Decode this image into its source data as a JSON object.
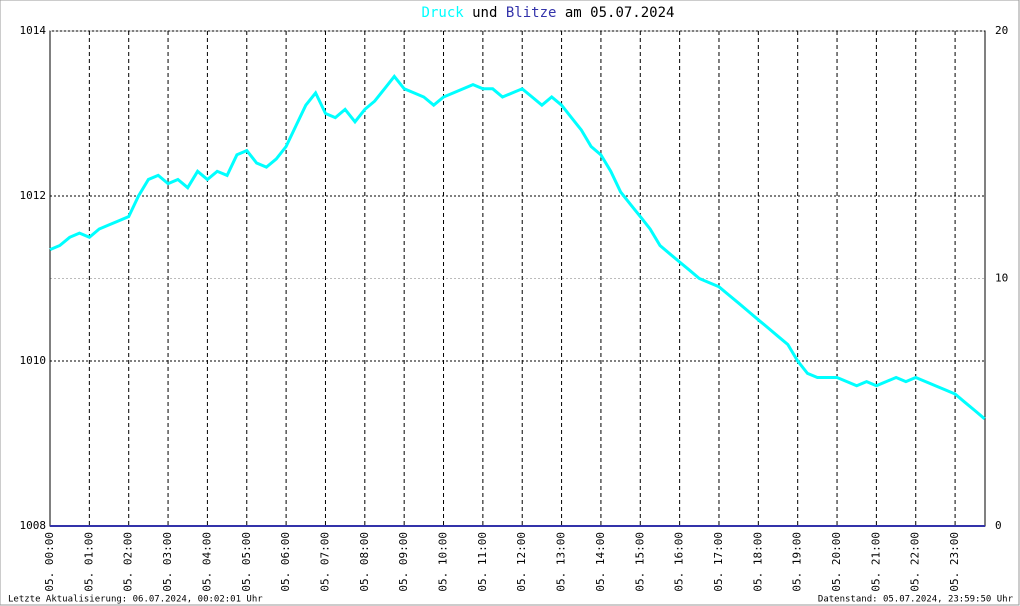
{
  "chart_data": {
    "type": "line",
    "title_connector": "und",
    "title_date": "am 05.07.2024",
    "footer_left": "Letzte Aktualisierung: 06.07.2024, 00:02:01 Uhr",
    "footer_right": "Datenstand: 05.07.2024, 23:59:50 Uhr",
    "xlim": [
      0,
      23.76
    ],
    "xticks": [
      {
        "value": 0,
        "label": "05. 00:00"
      },
      {
        "value": 1,
        "label": "05. 01:00"
      },
      {
        "value": 2,
        "label": "05. 02:00"
      },
      {
        "value": 3,
        "label": "05. 03:00"
      },
      {
        "value": 4,
        "label": "05. 04:00"
      },
      {
        "value": 5,
        "label": "05. 05:00"
      },
      {
        "value": 6,
        "label": "05. 06:00"
      },
      {
        "value": 7,
        "label": "05. 07:00"
      },
      {
        "value": 8,
        "label": "05. 08:00"
      },
      {
        "value": 9,
        "label": "05. 09:00"
      },
      {
        "value": 10,
        "label": "05. 10:00"
      },
      {
        "value": 11,
        "label": "05. 11:00"
      },
      {
        "value": 12,
        "label": "05. 12:00"
      },
      {
        "value": 13,
        "label": "05. 13:00"
      },
      {
        "value": 14,
        "label": "05. 14:00"
      },
      {
        "value": 15,
        "label": "05. 15:00"
      },
      {
        "value": 16,
        "label": "05. 16:00"
      },
      {
        "value": 17,
        "label": "05. 17:00"
      },
      {
        "value": 18,
        "label": "05. 18:00"
      },
      {
        "value": 19,
        "label": "05. 19:00"
      },
      {
        "value": 20,
        "label": "05. 20:00"
      },
      {
        "value": 21,
        "label": "05. 21:00"
      },
      {
        "value": 22,
        "label": "05. 22:00"
      },
      {
        "value": 23,
        "label": "05. 23:00"
      }
    ],
    "ylim": [
      1008,
      1014
    ],
    "yticks": [
      1008,
      1010,
      1012,
      1014
    ],
    "y2lim": [
      0,
      20
    ],
    "y2ticks": [
      0,
      10,
      20
    ],
    "grid": true,
    "series": [
      {
        "name": "Druck",
        "color": "#00ffff",
        "x": [
          0,
          0.25,
          0.5,
          0.75,
          1,
          1.25,
          1.5,
          1.75,
          2,
          2.25,
          2.5,
          2.75,
          3,
          3.25,
          3.5,
          3.75,
          4,
          4.25,
          4.5,
          4.75,
          5,
          5.25,
          5.5,
          5.75,
          6,
          6.25,
          6.5,
          6.75,
          7,
          7.25,
          7.5,
          7.75,
          8,
          8.25,
          8.5,
          8.75,
          9,
          9.25,
          9.5,
          9.75,
          10,
          10.25,
          10.5,
          10.75,
          11,
          11.25,
          11.5,
          11.75,
          12,
          12.25,
          12.5,
          12.75,
          13,
          13.25,
          13.5,
          13.75,
          14,
          14.25,
          14.5,
          14.75,
          15,
          15.25,
          15.5,
          15.75,
          16,
          16.25,
          16.5,
          16.75,
          17,
          17.25,
          17.5,
          17.75,
          18,
          18.25,
          18.5,
          18.75,
          19,
          19.25,
          19.5,
          19.75,
          20,
          20.25,
          20.5,
          20.75,
          21,
          21.25,
          21.5,
          21.75,
          22,
          22.25,
          22.5,
          22.75,
          23,
          23.25,
          23.5,
          23.75
        ],
        "values": [
          1011.35,
          1011.4,
          1011.5,
          1011.55,
          1011.5,
          1011.6,
          1011.65,
          1011.7,
          1011.75,
          1012.0,
          1012.2,
          1012.25,
          1012.15,
          1012.2,
          1012.1,
          1012.3,
          1012.2,
          1012.3,
          1012.25,
          1012.5,
          1012.55,
          1012.4,
          1012.35,
          1012.45,
          1012.6,
          1012.85,
          1013.1,
          1013.25,
          1013.0,
          1012.95,
          1013.05,
          1012.9,
          1013.05,
          1013.15,
          1013.3,
          1013.45,
          1013.3,
          1013.25,
          1013.2,
          1013.1,
          1013.2,
          1013.25,
          1013.3,
          1013.35,
          1013.3,
          1013.3,
          1013.2,
          1013.25,
          1013.3,
          1013.2,
          1013.1,
          1013.2,
          1013.1,
          1012.95,
          1012.8,
          1012.6,
          1012.5,
          1012.3,
          1012.05,
          1011.9,
          1011.75,
          1011.6,
          1011.4,
          1011.3,
          1011.2,
          1011.1,
          1011.0,
          1010.95,
          1010.9,
          1010.8,
          1010.7,
          1010.6,
          1010.5,
          1010.4,
          1010.3,
          1010.2,
          1010.0,
          1009.85,
          1009.8,
          1009.8,
          1009.8,
          1009.75,
          1009.7,
          1009.75,
          1009.7,
          1009.75,
          1009.8,
          1009.75,
          1009.8,
          1009.75,
          1009.7,
          1009.65,
          1009.6,
          1009.5,
          1009.4,
          1009.3
        ]
      },
      {
        "name": "Blitze",
        "color": "#3333aa",
        "axis": "y2",
        "x": [
          0,
          23.76
        ],
        "values": [
          0,
          0
        ]
      }
    ]
  }
}
